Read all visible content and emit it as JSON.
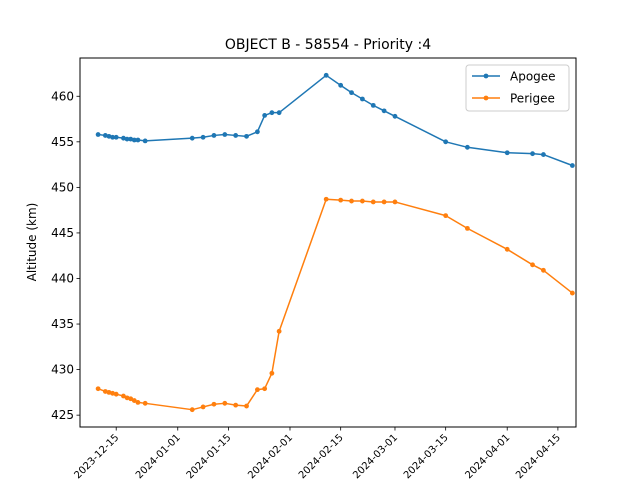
{
  "chart_data": {
    "type": "line",
    "title": "OBJECT B - 58554 - Priority :4",
    "xlabel": "",
    "ylabel": "Altitude (km)",
    "xlim": [
      "2023-12-05",
      "2024-04-20"
    ],
    "ylim": [
      423.7,
      464.2
    ],
    "x_ticks": [
      "2023-12-15",
      "2024-01-01",
      "2024-01-15",
      "2024-02-01",
      "2024-02-15",
      "2024-03-01",
      "2024-03-15",
      "2024-04-01",
      "2024-04-15"
    ],
    "y_ticks": [
      425,
      430,
      435,
      440,
      445,
      450,
      455,
      460
    ],
    "grid": false,
    "legend_position": "top-right",
    "series": [
      {
        "name": "Apogee",
        "color": "#1f77b4",
        "x": [
          "2023-12-10",
          "2023-12-12",
          "2023-12-13",
          "2023-12-14",
          "2023-12-15",
          "2023-12-17",
          "2023-12-18",
          "2023-12-19",
          "2023-12-20",
          "2023-12-21",
          "2023-12-23",
          "2024-01-05",
          "2024-01-08",
          "2024-01-11",
          "2024-01-14",
          "2024-01-17",
          "2024-01-20",
          "2024-01-23",
          "2024-01-25",
          "2024-01-27",
          "2024-01-29",
          "2024-02-11",
          "2024-02-15",
          "2024-02-18",
          "2024-02-21",
          "2024-02-24",
          "2024-02-27",
          "2024-03-01",
          "2024-03-15",
          "2024-03-21",
          "2024-04-01",
          "2024-04-08",
          "2024-04-11",
          "2024-04-19"
        ],
        "values": [
          455.8,
          455.7,
          455.6,
          455.5,
          455.5,
          455.4,
          455.3,
          455.3,
          455.2,
          455.2,
          455.1,
          455.4,
          455.5,
          455.7,
          455.8,
          455.7,
          455.6,
          456.1,
          457.9,
          458.2,
          458.2,
          462.3,
          461.2,
          460.4,
          459.7,
          459.0,
          458.4,
          457.8,
          455.0,
          454.4,
          453.8,
          453.7,
          453.6,
          452.4
        ]
      },
      {
        "name": "Perigee",
        "color": "#ff7f0e",
        "x": [
          "2023-12-10",
          "2023-12-12",
          "2023-12-13",
          "2023-12-14",
          "2023-12-15",
          "2023-12-17",
          "2023-12-18",
          "2023-12-19",
          "2023-12-20",
          "2023-12-21",
          "2023-12-23",
          "2024-01-05",
          "2024-01-08",
          "2024-01-11",
          "2024-01-14",
          "2024-01-17",
          "2024-01-20",
          "2024-01-23",
          "2024-01-25",
          "2024-01-27",
          "2024-01-29",
          "2024-02-11",
          "2024-02-15",
          "2024-02-18",
          "2024-02-21",
          "2024-02-24",
          "2024-02-27",
          "2024-03-01",
          "2024-03-15",
          "2024-03-21",
          "2024-04-01",
          "2024-04-08",
          "2024-04-11",
          "2024-04-19"
        ],
        "values": [
          427.9,
          427.6,
          427.5,
          427.4,
          427.3,
          427.1,
          426.9,
          426.8,
          426.6,
          426.4,
          426.3,
          425.6,
          425.9,
          426.2,
          426.3,
          426.1,
          426.0,
          427.8,
          427.9,
          429.6,
          434.2,
          448.7,
          448.6,
          448.5,
          448.5,
          448.4,
          448.4,
          448.4,
          446.9,
          445.5,
          443.2,
          441.5,
          440.9,
          438.4
        ]
      }
    ]
  }
}
